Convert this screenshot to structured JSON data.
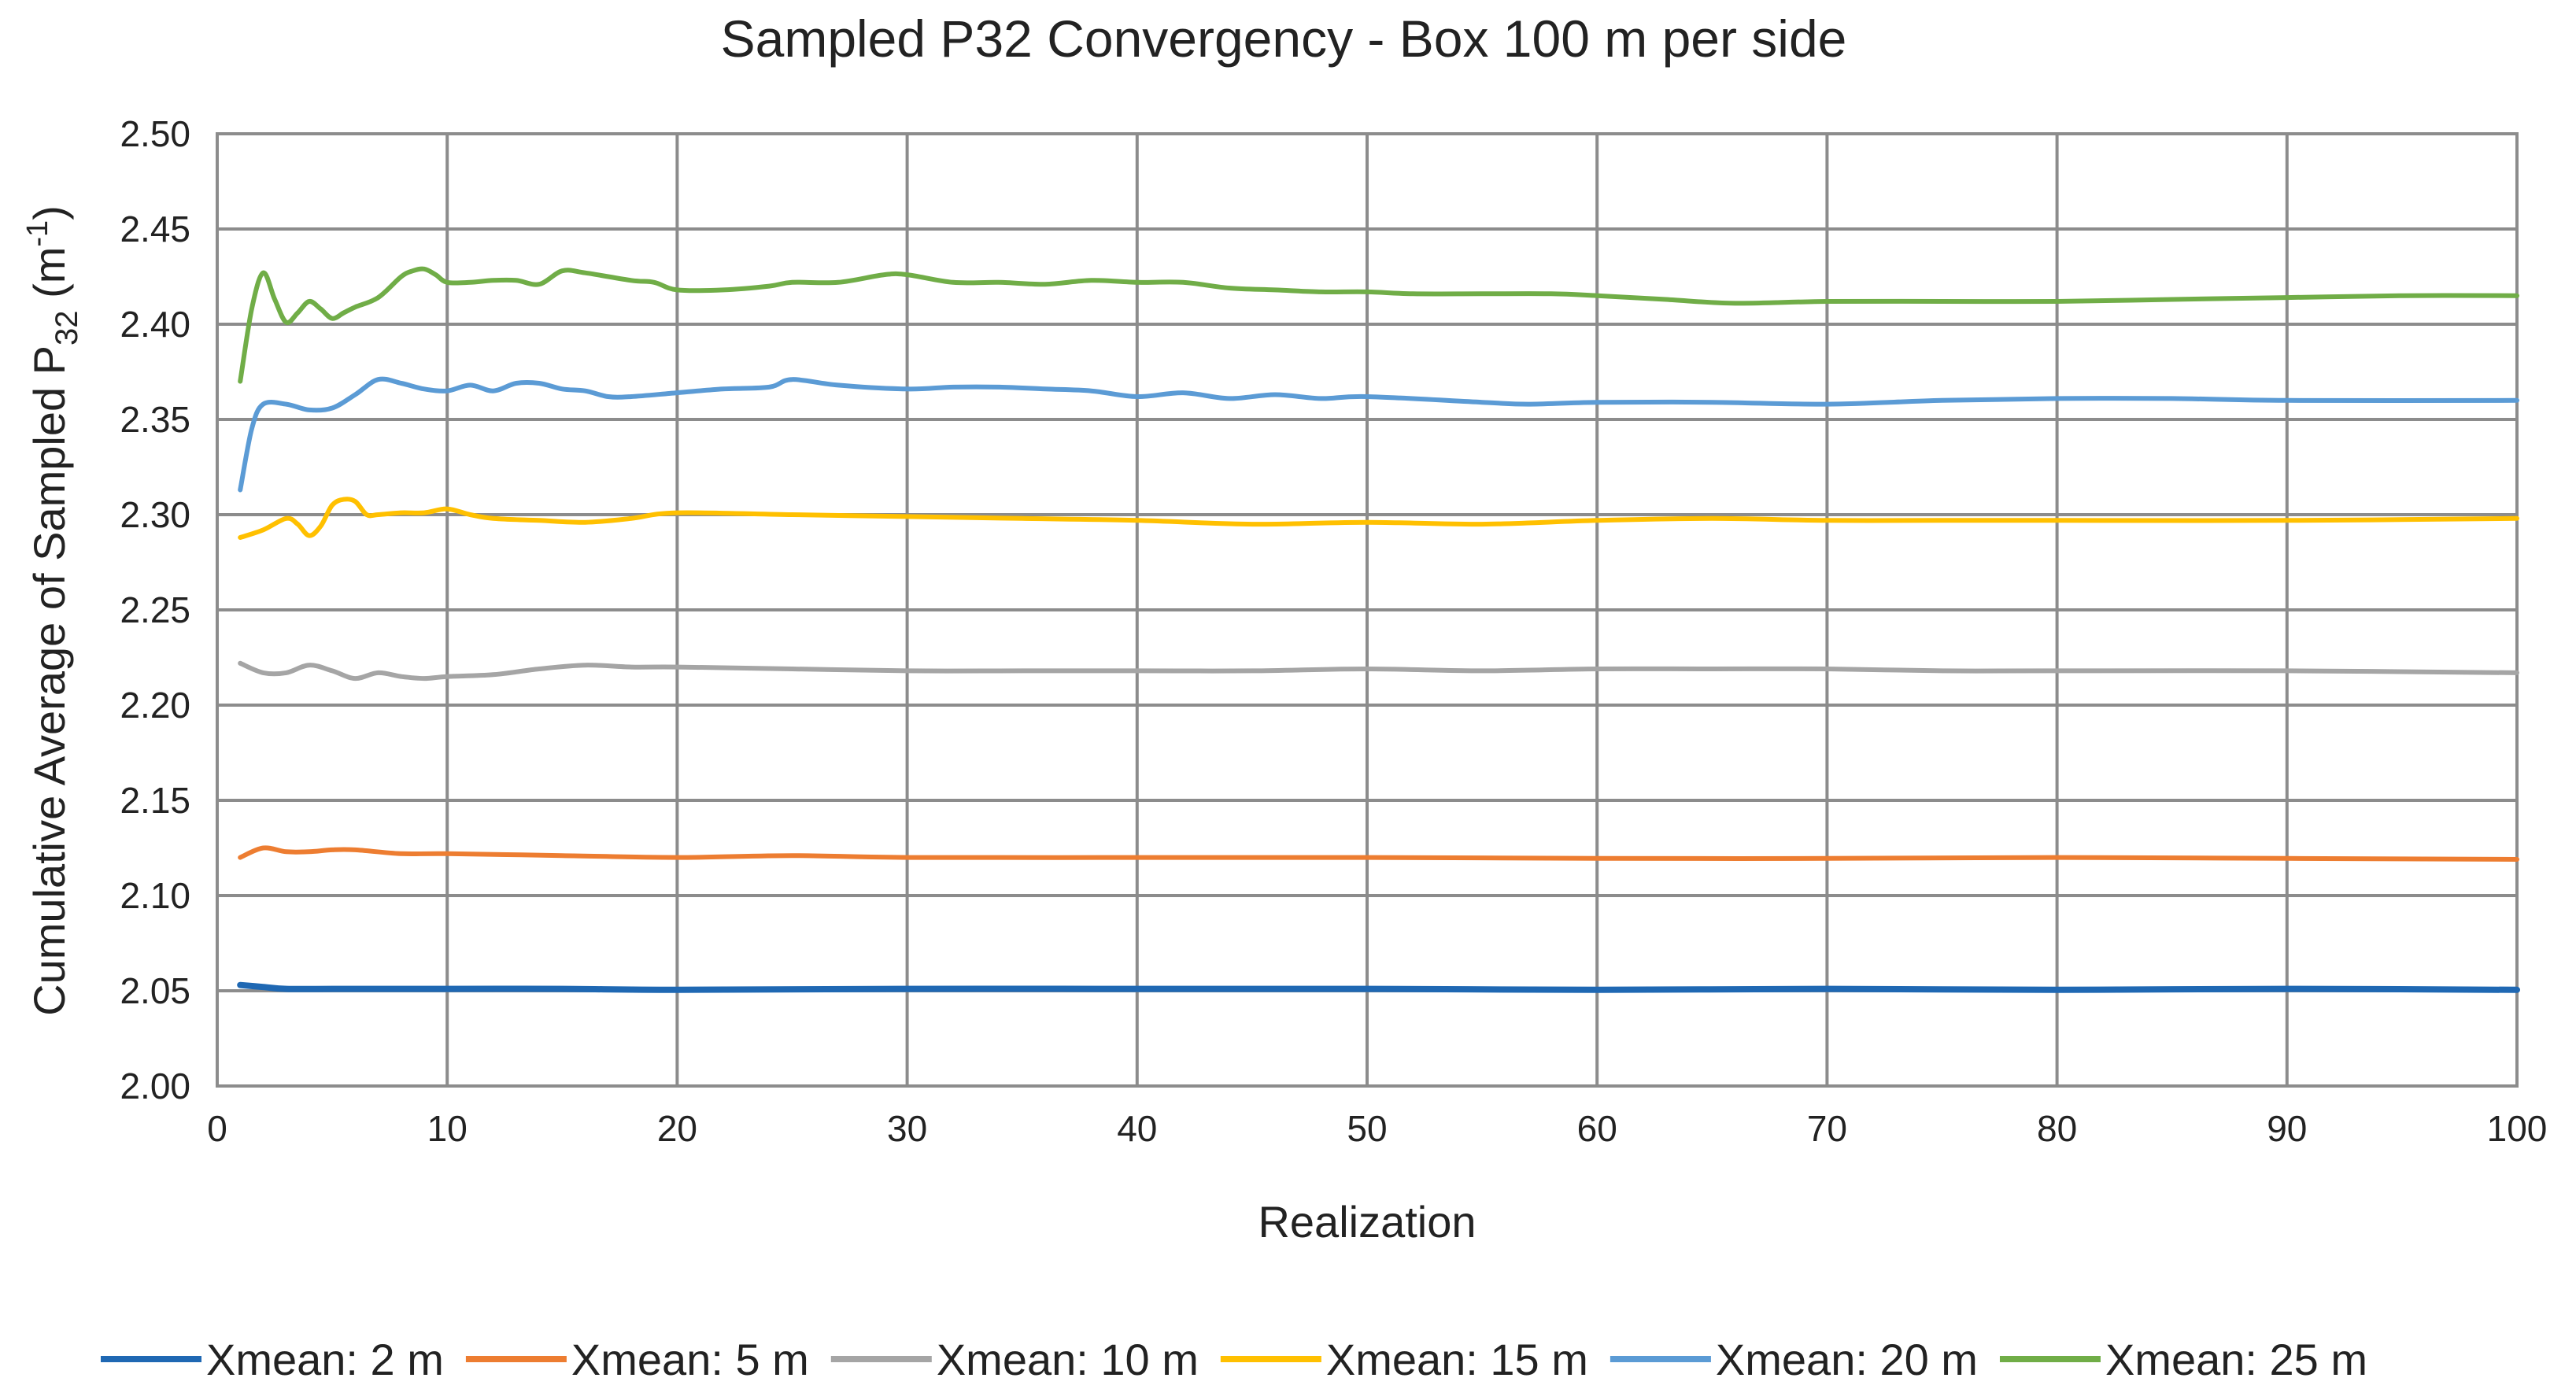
{
  "chart_data": {
    "type": "line",
    "title": "Sampled P32 Convergency - Box 100 m per side",
    "xlabel": "Realization",
    "ylabel_main": "Cumulative Average of Sampled  P",
    "ylabel_sub": "32",
    "ylabel_unit_open": " (m",
    "ylabel_unit_sup": "-1",
    "ylabel_unit_close": ")",
    "xlim": [
      0,
      100
    ],
    "ylim": [
      2.0,
      2.5
    ],
    "xticks": [
      0,
      10,
      20,
      30,
      40,
      50,
      60,
      70,
      80,
      90,
      100
    ],
    "xtick_labels": [
      "0",
      "10",
      "20",
      "30",
      "40",
      "50",
      "60",
      "70",
      "80",
      "90",
      "100"
    ],
    "yticks": [
      2.0,
      2.05,
      2.1,
      2.15,
      2.2,
      2.25,
      2.3,
      2.35,
      2.4,
      2.45,
      2.5
    ],
    "ytick_labels": [
      "2.00",
      "2.05",
      "2.10",
      "2.15",
      "2.20",
      "2.25",
      "2.30",
      "2.35",
      "2.40",
      "2.45",
      "2.50"
    ],
    "grid": true,
    "legend_position": "bottom",
    "series": [
      {
        "name": "Xmean: 2 m",
        "color": "#1f68b3",
        "x": [
          1,
          2,
          3,
          5,
          7,
          10,
          15,
          20,
          30,
          40,
          50,
          60,
          70,
          80,
          90,
          100
        ],
        "y": [
          2.053,
          2.052,
          2.051,
          2.051,
          2.051,
          2.051,
          2.051,
          2.0505,
          2.051,
          2.051,
          2.051,
          2.0505,
          2.051,
          2.0505,
          2.051,
          2.0505
        ]
      },
      {
        "name": "Xmean: 5 m",
        "color": "#ed7d31",
        "x": [
          1,
          2,
          3,
          4,
          5,
          6,
          8,
          10,
          15,
          20,
          25,
          30,
          40,
          50,
          60,
          70,
          80,
          90,
          100
        ],
        "y": [
          2.12,
          2.125,
          2.123,
          2.123,
          2.124,
          2.124,
          2.122,
          2.122,
          2.121,
          2.12,
          2.121,
          2.12,
          2.12,
          2.12,
          2.1195,
          2.1195,
          2.12,
          2.1195,
          2.119
        ]
      },
      {
        "name": "Xmean: 10 m",
        "color": "#a5a5a5",
        "x": [
          1,
          2,
          3,
          4,
          5,
          6,
          7,
          8,
          9,
          10,
          12,
          14,
          16,
          18,
          20,
          25,
          30,
          35,
          40,
          45,
          50,
          55,
          60,
          65,
          70,
          75,
          80,
          90,
          100
        ],
        "y": [
          2.222,
          2.217,
          2.217,
          2.221,
          2.218,
          2.214,
          2.217,
          2.215,
          2.214,
          2.215,
          2.216,
          2.219,
          2.221,
          2.22,
          2.22,
          2.219,
          2.218,
          2.218,
          2.218,
          2.218,
          2.219,
          2.218,
          2.219,
          2.219,
          2.219,
          2.218,
          2.218,
          2.218,
          2.217
        ]
      },
      {
        "name": "Xmean: 15 m",
        "color": "#ffc000",
        "x": [
          1,
          2,
          3,
          3.5,
          4,
          4.5,
          5,
          5.5,
          6,
          6.5,
          7,
          8,
          9,
          10,
          11,
          12,
          14,
          16,
          18,
          20,
          25,
          30,
          35,
          40,
          45,
          50,
          55,
          60,
          65,
          70,
          75,
          80,
          90,
          100
        ],
        "y": [
          2.288,
          2.292,
          2.298,
          2.295,
          2.289,
          2.294,
          2.305,
          2.308,
          2.307,
          2.3,
          2.3,
          2.301,
          2.301,
          2.303,
          2.3,
          2.298,
          2.297,
          2.296,
          2.298,
          2.301,
          2.3,
          2.299,
          2.298,
          2.297,
          2.295,
          2.296,
          2.295,
          2.297,
          2.298,
          2.297,
          2.297,
          2.297,
          2.297,
          2.298
        ]
      },
      {
        "name": "Xmean: 20 m",
        "color": "#5b9bd5",
        "x": [
          1,
          1.5,
          2,
          3,
          4,
          5,
          6,
          7,
          8,
          9,
          10,
          11,
          12,
          13,
          14,
          15,
          16,
          17,
          18,
          20,
          22,
          24,
          25,
          27,
          30,
          32,
          34,
          36,
          38,
          40,
          42,
          44,
          46,
          48,
          50,
          55,
          57,
          60,
          65,
          70,
          75,
          80,
          85,
          90,
          100
        ],
        "y": [
          2.313,
          2.345,
          2.358,
          2.358,
          2.355,
          2.356,
          2.363,
          2.371,
          2.369,
          2.366,
          2.365,
          2.368,
          2.365,
          2.369,
          2.369,
          2.366,
          2.365,
          2.362,
          2.362,
          2.364,
          2.366,
          2.367,
          2.371,
          2.368,
          2.366,
          2.367,
          2.367,
          2.366,
          2.365,
          2.362,
          2.364,
          2.361,
          2.363,
          2.361,
          2.362,
          2.359,
          2.358,
          2.359,
          2.359,
          2.358,
          2.36,
          2.361,
          2.361,
          2.36,
          2.36
        ]
      },
      {
        "name": "Xmean: 25 m",
        "color": "#70ad47",
        "x": [
          1,
          1.5,
          2,
          2.5,
          3,
          3.5,
          4,
          4.5,
          5,
          5.5,
          6,
          7,
          8,
          8.5,
          9,
          9.5,
          10,
          11,
          12,
          13,
          14,
          15,
          16,
          18,
          19,
          20,
          22,
          24,
          25,
          27,
          29,
          30,
          32,
          34,
          36,
          38,
          40,
          42,
          44,
          46,
          48,
          50,
          52,
          55,
          58,
          60,
          63,
          66,
          70,
          75,
          80,
          85,
          90,
          95,
          100
        ],
        "y": [
          2.37,
          2.408,
          2.427,
          2.413,
          2.401,
          2.406,
          2.412,
          2.408,
          2.403,
          2.406,
          2.409,
          2.414,
          2.425,
          2.428,
          2.429,
          2.426,
          2.422,
          2.422,
          2.423,
          2.423,
          2.421,
          2.428,
          2.427,
          2.423,
          2.422,
          2.418,
          2.418,
          2.42,
          2.422,
          2.422,
          2.426,
          2.426,
          2.422,
          2.422,
          2.421,
          2.423,
          2.422,
          2.422,
          2.419,
          2.418,
          2.417,
          2.417,
          2.416,
          2.416,
          2.416,
          2.415,
          2.413,
          2.411,
          2.412,
          2.412,
          2.412,
          2.413,
          2.414,
          2.415,
          2.415
        ]
      }
    ]
  }
}
